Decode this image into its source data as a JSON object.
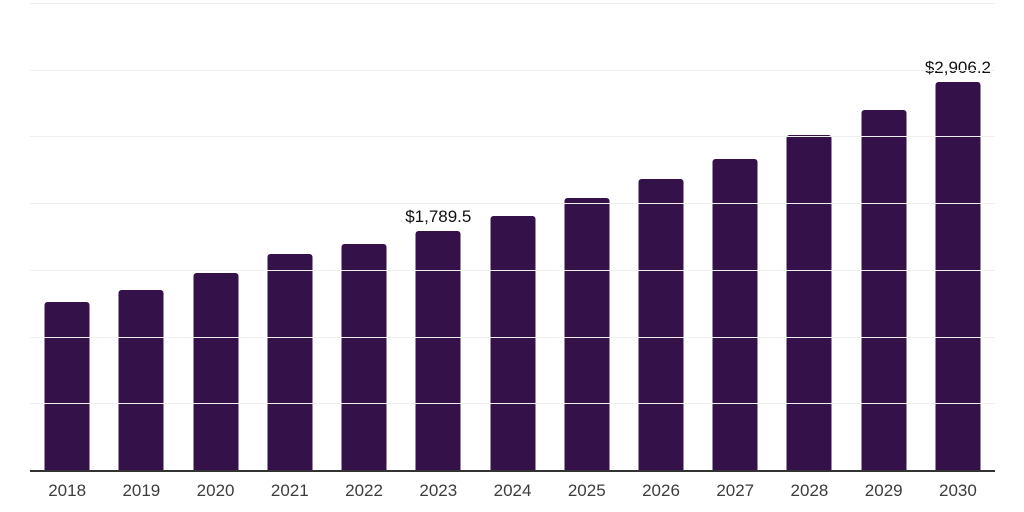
{
  "chart_data": {
    "type": "bar",
    "categories": [
      "2018",
      "2019",
      "2020",
      "2021",
      "2022",
      "2023",
      "2024",
      "2025",
      "2026",
      "2027",
      "2028",
      "2029",
      "2030"
    ],
    "values": [
      1260,
      1352,
      1475,
      1618,
      1692,
      1789.5,
      1905,
      2036,
      2180,
      2331,
      2510,
      2699,
      2906.2
    ],
    "point_labels": [
      "",
      "",
      "",
      "",
      "",
      "$1,789.5",
      "",
      "",
      "",
      "",
      "",
      "",
      "$2,906.2"
    ],
    "ylim": [
      0,
      3500
    ],
    "gridline_step": 500,
    "grid": "horizontal",
    "legend": "none",
    "bar_color": "#351149",
    "axis_color": "#333333",
    "gridline_color": "#efefef",
    "tick_label_color": "#3d3d3d",
    "value_label_color": "#111111"
  }
}
